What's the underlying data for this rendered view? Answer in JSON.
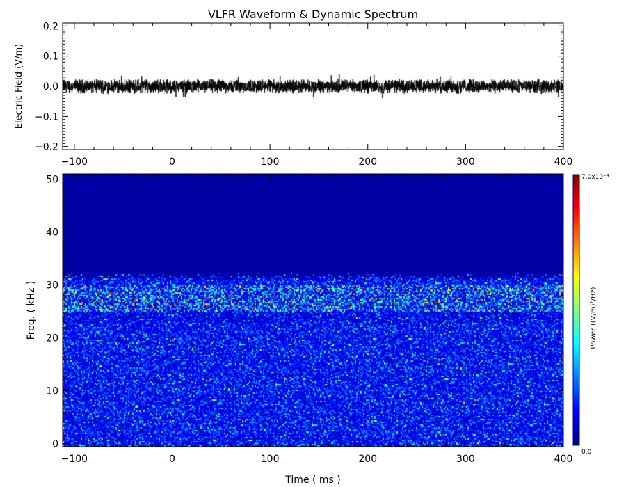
{
  "chart_data": [
    {
      "type": "line",
      "title": "VLFR Waveform & Dynamic Spectrum",
      "xlabel": "",
      "ylabel": "Electric Field  (V/m)",
      "xlim": [
        -112,
        400
      ],
      "ylim": [
        -0.21,
        0.21
      ],
      "xticks": [
        "-100",
        "0",
        "100",
        "200",
        "300",
        "400"
      ],
      "yticks": [
        "-0.2",
        "-0.1",
        "0.0",
        "0.1",
        "0.2"
      ],
      "series": [
        {
          "description_values": "noise waveform centered at 0.0",
          "mean": 0.0,
          "typical_amplitude": 0.02,
          "peak_amplitude": 0.04,
          "color": "#000000"
        }
      ],
      "grid": false
    },
    {
      "type": "heatmap",
      "xlabel": "Time ( ms )",
      "ylabel": "Freq. ( kHz )",
      "xlim": [
        -112,
        400
      ],
      "ylim": [
        -0.6,
        51
      ],
      "xticks": [
        "-100",
        "0",
        "100",
        "200",
        "300",
        "400"
      ],
      "yticks": [
        "0",
        "10",
        "20",
        "30",
        "40",
        "50"
      ],
      "colormap": "jet",
      "colorbar": {
        "label": "Power   ((V/m)²/Hz)",
        "min_label": "0.0",
        "max_label": "7.0x10⁻⁴",
        "min": 0.0,
        "max": 0.0007
      },
      "features": {
        "noise_floor_above_khz": 31,
        "enhanced_band_khz": [
          25,
          30
        ],
        "background_level_fraction": 0.03,
        "band_level_fraction": 0.3,
        "broadband_level_fraction": 0.15
      },
      "grid": false
    }
  ]
}
